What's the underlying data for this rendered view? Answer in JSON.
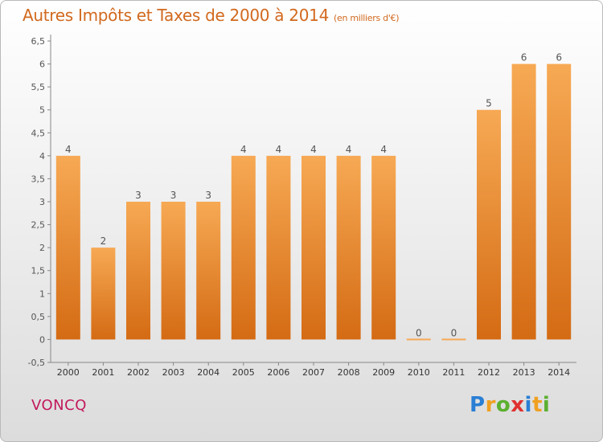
{
  "title": "Autres Impôts et Taxes de 2000 à 2014",
  "subtitle": "(en milliers d'€)",
  "commune": "VONCQ",
  "logo": {
    "letters": [
      "P",
      "r",
      "o",
      "x",
      "i",
      "t",
      "i"
    ],
    "colors": [
      "#2a7fd4",
      "#f0a020",
      "#5bb030",
      "#e03030",
      "#2a7fd4",
      "#f0a020",
      "#5bb030"
    ]
  },
  "colors": {
    "bar_top": "#f7a954",
    "bar_bottom": "#d46b14",
    "label": "#555555",
    "accent": "#d2691e"
  },
  "chart_data": {
    "type": "bar",
    "title": "Autres Impôts et Taxes de 2000 à 2014",
    "subtitle": "(en milliers d'€)",
    "categories": [
      "2000",
      "2001",
      "2002",
      "2003",
      "2004",
      "2005",
      "2006",
      "2007",
      "2008",
      "2009",
      "2010",
      "2011",
      "2012",
      "2013",
      "2014"
    ],
    "values": [
      4,
      2,
      3,
      3,
      3,
      4,
      4,
      4,
      4,
      4,
      0,
      0,
      5,
      6,
      6
    ],
    "data_labels": [
      "4",
      "2",
      "3",
      "3",
      "3",
      "4",
      "4",
      "4",
      "4",
      "4",
      "0",
      "0",
      "5",
      "6",
      "6"
    ],
    "ylim": [
      -0.5,
      6.5
    ],
    "yticks": [
      -0.5,
      0,
      0.5,
      1,
      1.5,
      2,
      2.5,
      3,
      3.5,
      4,
      4.5,
      5,
      5.5,
      6,
      6.5
    ],
    "ytick_labels": [
      "-0,5",
      "0",
      "0,5",
      "1",
      "1,5",
      "2",
      "2,5",
      "3",
      "3,5",
      "4",
      "4,5",
      "5",
      "5,5",
      "6",
      "6,5"
    ],
    "grid": false,
    "xlabel": "",
    "ylabel": ""
  }
}
